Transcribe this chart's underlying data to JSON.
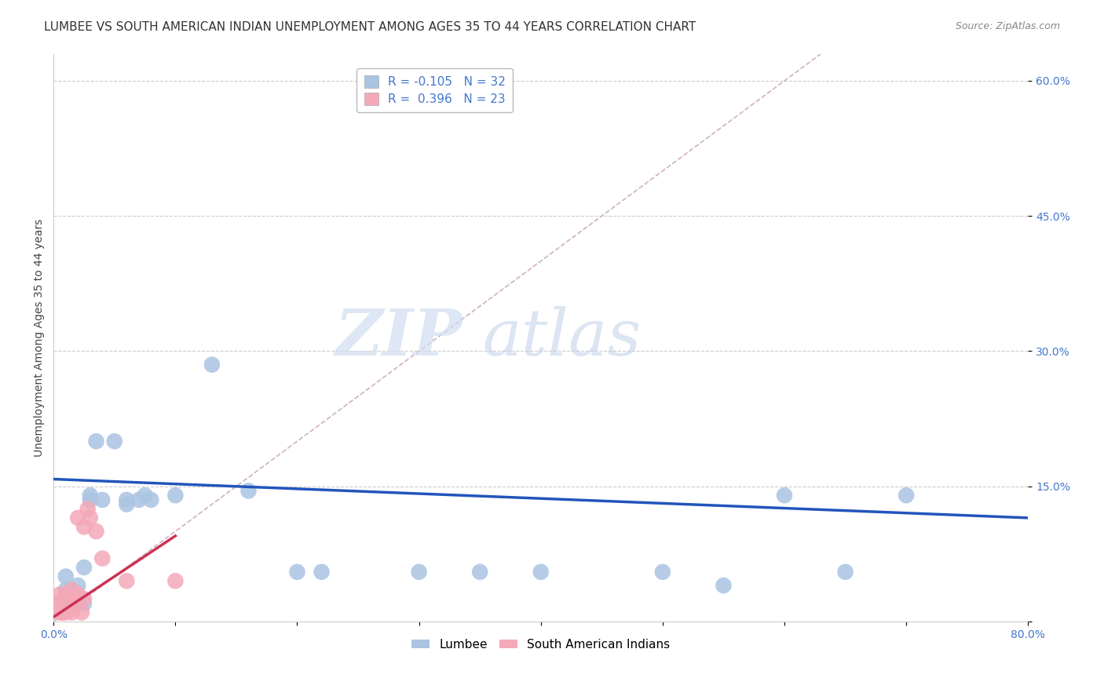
{
  "title": "LUMBEE VS SOUTH AMERICAN INDIAN UNEMPLOYMENT AMONG AGES 35 TO 44 YEARS CORRELATION CHART",
  "source": "Source: ZipAtlas.com",
  "ylabel": "Unemployment Among Ages 35 to 44 years",
  "xlim": [
    0.0,
    0.8
  ],
  "ylim": [
    0.0,
    0.63
  ],
  "xticks": [
    0.0,
    0.1,
    0.2,
    0.3,
    0.4,
    0.5,
    0.6,
    0.7,
    0.8
  ],
  "xticklabels": [
    "0.0%",
    "",
    "",
    "",
    "",
    "",
    "",
    "",
    "80.0%"
  ],
  "yticks_right": [
    0.0,
    0.15,
    0.3,
    0.45,
    0.6
  ],
  "yticklabels_right": [
    "",
    "15.0%",
    "30.0%",
    "45.0%",
    "60.0%"
  ],
  "lumbee_R": -0.105,
  "lumbee_N": 32,
  "sa_R": 0.396,
  "sa_N": 23,
  "lumbee_color": "#aac4e2",
  "sa_color": "#f4a8b8",
  "lumbee_line_color": "#2255bb",
  "sa_line_color": "#cc3355",
  "ref_line_color": "#d0b0c0",
  "grid_color": "#cccccc",
  "background_color": "#ffffff",
  "lumbee_x": [
    0.01,
    0.01,
    0.01,
    0.015,
    0.015,
    0.02,
    0.02,
    0.025,
    0.025,
    0.03,
    0.03,
    0.035,
    0.04,
    0.05,
    0.06,
    0.06,
    0.07,
    0.075,
    0.08,
    0.1,
    0.13,
    0.16,
    0.2,
    0.22,
    0.3,
    0.35,
    0.4,
    0.5,
    0.55,
    0.6,
    0.65,
    0.7
  ],
  "lumbee_y": [
    0.02,
    0.035,
    0.05,
    0.02,
    0.035,
    0.02,
    0.04,
    0.02,
    0.06,
    0.14,
    0.135,
    0.2,
    0.135,
    0.2,
    0.135,
    0.13,
    0.135,
    0.14,
    0.135,
    0.14,
    0.285,
    0.145,
    0.055,
    0.055,
    0.055,
    0.055,
    0.055,
    0.055,
    0.04,
    0.14,
    0.055,
    0.14
  ],
  "sa_x": [
    0.005,
    0.005,
    0.005,
    0.007,
    0.008,
    0.008,
    0.01,
    0.01,
    0.013,
    0.015,
    0.015,
    0.018,
    0.02,
    0.02,
    0.023,
    0.025,
    0.025,
    0.028,
    0.03,
    0.035,
    0.04,
    0.06,
    0.1
  ],
  "sa_y": [
    0.01,
    0.02,
    0.03,
    0.01,
    0.01,
    0.02,
    0.01,
    0.03,
    0.02,
    0.01,
    0.035,
    0.025,
    0.03,
    0.115,
    0.01,
    0.025,
    0.105,
    0.125,
    0.115,
    0.1,
    0.07,
    0.045,
    0.045
  ],
  "lumbee_line_x0": 0.0,
  "lumbee_line_x1": 0.8,
  "lumbee_line_y0": 0.158,
  "lumbee_line_y1": 0.115,
  "sa_line_x0": 0.0,
  "sa_line_x1": 0.1,
  "sa_line_y0": 0.005,
  "sa_line_y1": 0.095,
  "watermark_zip": "ZIP",
  "watermark_atlas": "atlas",
  "title_fontsize": 11,
  "axis_label_fontsize": 10,
  "tick_fontsize": 10,
  "legend_fontsize": 11
}
